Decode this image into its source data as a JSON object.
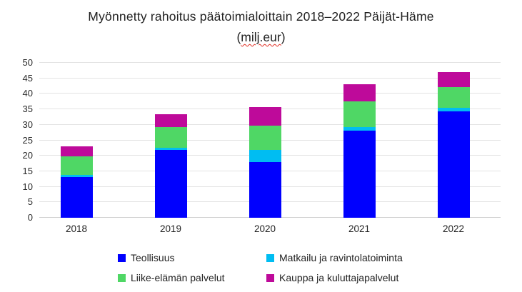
{
  "title": {
    "line1": "Myönnetty rahoitus päätoimialoittain 2018–2022 Päijät-Häme",
    "line2_prefix": "(",
    "line2_underlined": "milj.eur",
    "line2_suffix": ")"
  },
  "chart_data": {
    "type": "bar",
    "stacked": true,
    "title": "Myönnetty rahoitus päätoimialoittain 2018–2022 Päijät-Häme (milj.eur)",
    "unit": "milj.eur",
    "categories": [
      "2018",
      "2019",
      "2020",
      "2021",
      "2022"
    ],
    "series": [
      {
        "name": "Teollisuus",
        "color": "#0000FE",
        "values": [
          13.2,
          21.9,
          18.0,
          28.2,
          34.4
        ]
      },
      {
        "name": "Matkailu ja ravintolatoiminta",
        "color": "#00BDF2",
        "values": [
          0.7,
          0.7,
          3.8,
          1.1,
          1.2
        ]
      },
      {
        "name": "Liike-elämän palvelut",
        "color": "#4FD765",
        "values": [
          6.0,
          6.6,
          8.0,
          8.2,
          6.6
        ]
      },
      {
        "name": "Kauppa ja kuluttajapalvelut",
        "color": "#BE0A9A",
        "values": [
          3.2,
          4.2,
          5.9,
          5.6,
          4.9
        ]
      }
    ],
    "totals": [
      23.1,
      33.4,
      35.7,
      43.1,
      47.1
    ],
    "xlabel": "",
    "ylabel": "",
    "ylim": [
      0,
      50
    ],
    "yticks": [
      0,
      5,
      10,
      15,
      20,
      25,
      30,
      35,
      40,
      45,
      50
    ],
    "grid": true,
    "legend_position": "bottom"
  },
  "colors": {
    "background": "#ffffff",
    "grid": "#e3e3e3",
    "axis_line": "#cfcfcf",
    "title_text": "#212121",
    "tick_text": "#2b2b2b",
    "spellcheck_underline": "#e02b20"
  }
}
